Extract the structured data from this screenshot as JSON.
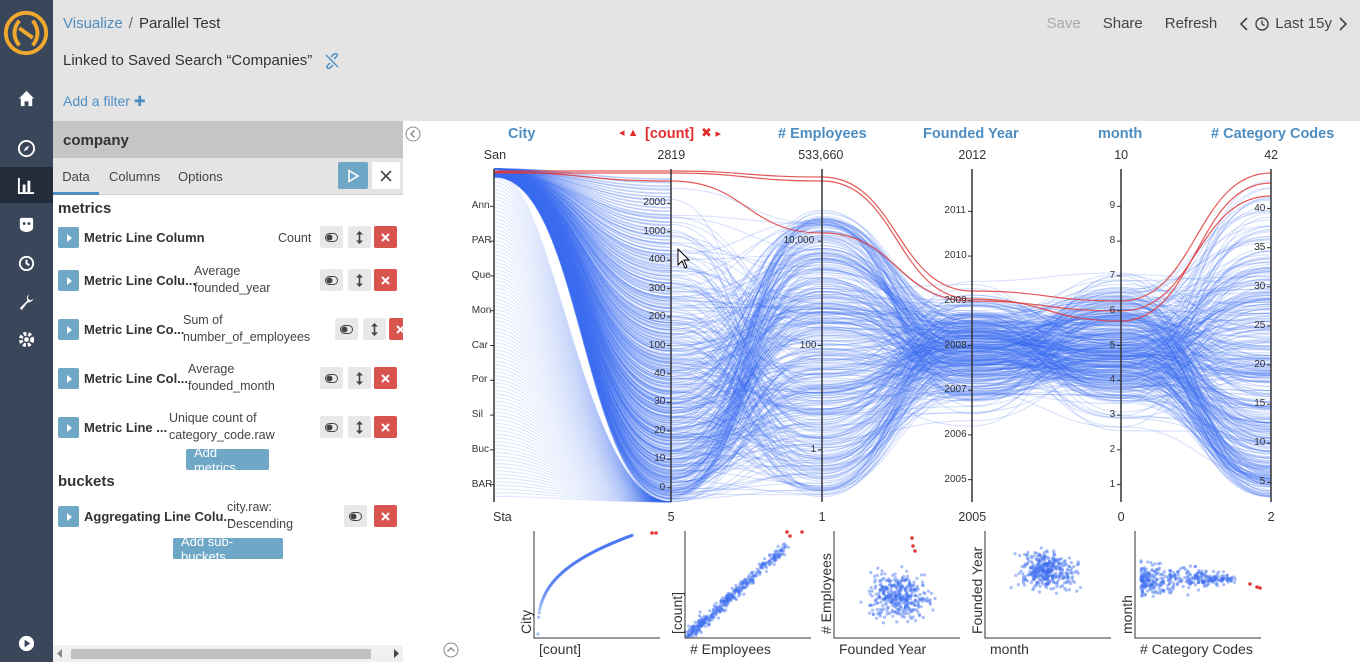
{
  "nav": {
    "items": [
      {
        "name": "home",
        "icon": "home-icon"
      },
      {
        "name": "discover",
        "icon": "compass-icon"
      },
      {
        "name": "visualize",
        "icon": "bar-chart-icon",
        "active": true
      },
      {
        "name": "dashboard",
        "icon": "dashboard-icon"
      },
      {
        "name": "timelion",
        "icon": "clock-icon"
      },
      {
        "name": "dev-tools",
        "icon": "wrench-icon"
      },
      {
        "name": "management",
        "icon": "gear-icon"
      }
    ],
    "collapse_icon": "play-circle-icon"
  },
  "header": {
    "breadcrumb_root": "Visualize",
    "breadcrumb_sep": "/",
    "breadcrumb_current": "Parallel Test",
    "save_label": "Save",
    "share_label": "Share",
    "refresh_label": "Refresh",
    "time_label": "Last 15y",
    "linked_label": "Linked to Saved Search “Companies”",
    "add_filter_label": "Add a filter",
    "add_filter_plus": "✚"
  },
  "sidebar": {
    "index_title": "company",
    "tabs": [
      "Data",
      "Columns",
      "Options"
    ],
    "metrics_title": "metrics",
    "buckets_title": "buckets",
    "metrics": [
      {
        "name": "Metric Line Column",
        "desc1": "Count",
        "desc2": ""
      },
      {
        "name": "Metric Line Colu...",
        "desc1": "Average",
        "desc2": "founded_year"
      },
      {
        "name": "Metric Line Co...",
        "desc1": "Sum of",
        "desc2": "number_of_employees"
      },
      {
        "name": "Metric Line Col...",
        "desc1": "Average",
        "desc2": "founded_month"
      },
      {
        "name": "Metric Line ...",
        "desc1": "Unique count of",
        "desc2": "category_code.raw"
      }
    ],
    "add_metrics_label": "Add metrics",
    "buckets": [
      {
        "name": "Aggregating Line Colu...",
        "desc1": "city.raw:",
        "desc2": "Descending"
      }
    ],
    "add_buckets_label": "Add sub-buckets"
  },
  "chart_data": [
    {
      "type": "parallel-coordinates",
      "axes": [
        {
          "title": "City",
          "top": "San",
          "bottom": "Sta",
          "ticks": [
            "Ann",
            "PAR",
            "Que",
            "Mon",
            "Car",
            "Por",
            "Sil",
            "Buc",
            "BAR"
          ]
        },
        {
          "title": "[count]",
          "top": "2819",
          "bottom": "5",
          "scale": "log",
          "ticks": [
            "2000",
            "1000",
            "400",
            "300",
            "200",
            "100",
            "40",
            "30",
            "20",
            "10",
            "0"
          ]
        },
        {
          "title": "# Employees",
          "top": "533,660",
          "bottom": "1",
          "scale": "log",
          "ticks": [
            "10,000",
            "100",
            "1"
          ]
        },
        {
          "title": "Founded Year",
          "top": "2012",
          "bottom": "2005",
          "ticks": [
            "2011",
            "2010",
            "2009",
            "2008",
            "2007",
            "2006",
            "2005"
          ]
        },
        {
          "title": "month",
          "top": "10",
          "bottom": "0",
          "ticks": [
            "9",
            "8",
            "7",
            "6",
            "5",
            "4",
            "3",
            "2",
            "1"
          ]
        },
        {
          "title": "# Category Codes",
          "top": "42",
          "bottom": "2",
          "ticks": [
            "40",
            "35",
            "30",
            "25",
            "20",
            "15",
            "10",
            "5"
          ]
        }
      ],
      "line_color": "#3d6ef0",
      "brushed_color": "#e03a3a",
      "active_axis": "[count]"
    },
    {
      "type": "scatter",
      "panels": [
        {
          "xlabel": "[count]",
          "ylabel": "City"
        },
        {
          "xlabel": "# Employees",
          "ylabel": "[count]"
        },
        {
          "xlabel": "Founded Year",
          "ylabel": "# Employees"
        },
        {
          "xlabel": "month",
          "ylabel": "Founded Year"
        },
        {
          "xlabel": "# Category Codes",
          "ylabel": "month"
        }
      ],
      "point_color": "#3d6ef0",
      "highlight_color": "#e03a3a"
    }
  ]
}
